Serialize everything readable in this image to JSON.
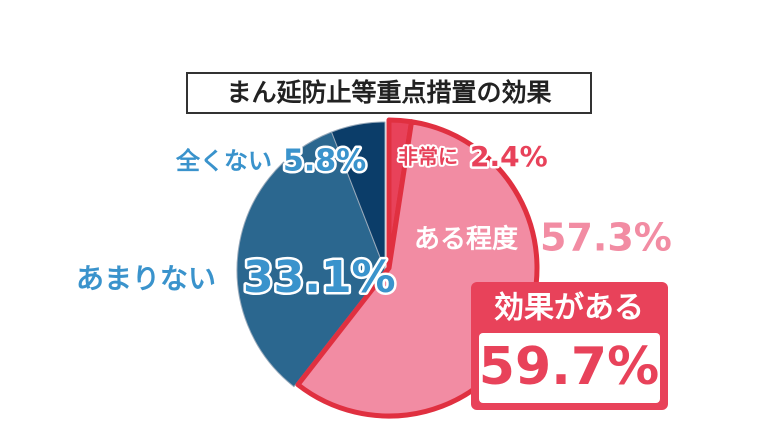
{
  "chart_data": {
    "type": "pie",
    "title": "まん延防止等重点措置の効果",
    "categories": [
      "非常に",
      "ある程度",
      "あまりない",
      "全くない"
    ],
    "values": [
      2.4,
      57.3,
      33.1,
      5.8
    ],
    "value_labels": [
      "2.4%",
      "57.3%",
      "33.1%",
      "5.8%"
    ],
    "colors": [
      "#e8425a",
      "#f28ca3",
      "#2b678f",
      "#0b3d69"
    ],
    "callout": {
      "title": "効果がある",
      "text": "59.7%"
    }
  }
}
